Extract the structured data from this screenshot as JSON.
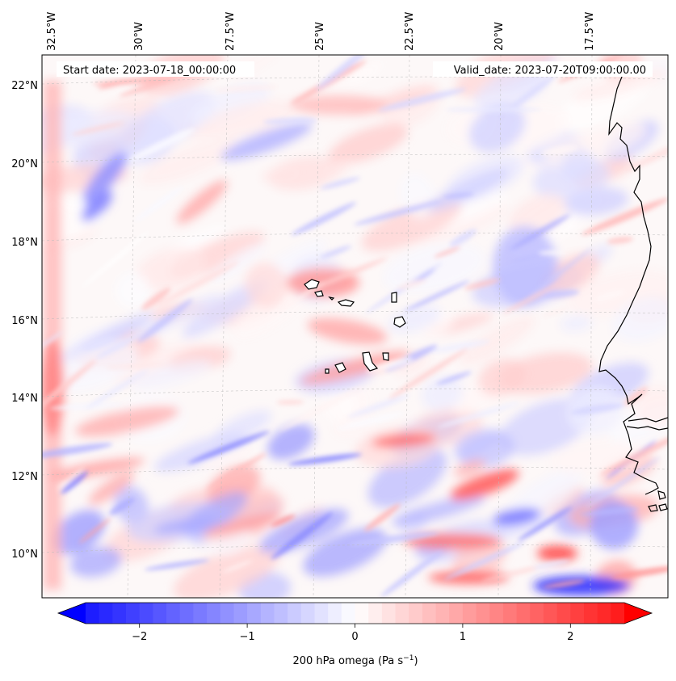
{
  "header": {
    "start_date": "Start date: 2023-07-18_00:00:00",
    "valid_date": "Valid_date: 2023-07-20T09:00:00.00"
  },
  "axes": {
    "lon_labels": [
      "32.5°W",
      "30°W",
      "27.5°W",
      "25°W",
      "22.5°W",
      "20°W",
      "17.5°W"
    ],
    "lat_labels": [
      "22°N",
      "20°N",
      "18°N",
      "16°N",
      "14°N",
      "12°N",
      "10°N"
    ]
  },
  "colorbar": {
    "label": "200 hPa omega (Pa s",
    "label_sup": "−1",
    "label_close": ")",
    "ticks": [
      "−2",
      "−1",
      "0",
      "1",
      "2"
    ],
    "tick_values": [
      -2,
      -1,
      0,
      1,
      2
    ],
    "vmin": -2.75,
    "vmax": 2.75,
    "cmap": "bwr",
    "colors": {
      "low": "#0000ff",
      "mid": "#ffffff",
      "high": "#ff0000"
    }
  },
  "map": {
    "field": "200 hPa omega",
    "units": "Pa s-1",
    "projection": "lambert-conformal",
    "extent_lon": [
      -33.0,
      -15.5
    ],
    "extent_lat": [
      8.8,
      22.8
    ],
    "gridlines": true,
    "coastline_color": "#000000",
    "features": [
      "cabo-verde-islands",
      "west-africa-coast"
    ]
  }
}
